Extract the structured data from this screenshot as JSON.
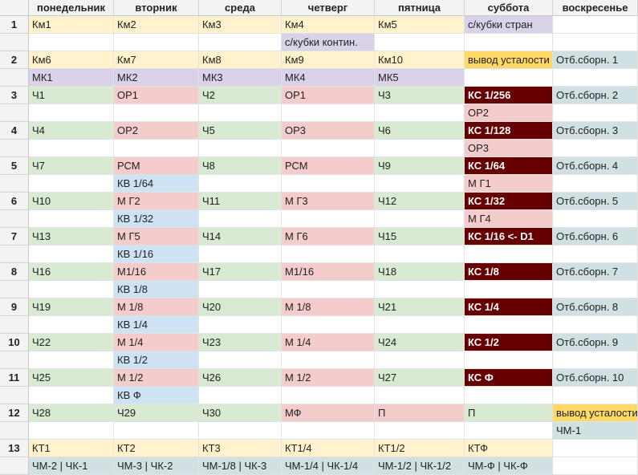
{
  "headers": [
    "",
    "понедельник",
    "вторник",
    "среда",
    "четверг",
    "пятница",
    "суббота",
    "воскресенье"
  ],
  "colors": {
    "yellow": "#fff2cc",
    "purple": "#d9d2e9",
    "green": "#d9ead3",
    "pink": "#f4cccc",
    "blue": "#cfe2f3",
    "teal": "#d0e0e3",
    "orange": "#ffd966",
    "maroon": "#660000",
    "white": "#ffffff"
  },
  "rows": [
    {
      "label": "1",
      "cells": [
        [
          "Км1",
          "yellow"
        ],
        [
          "Км2",
          "yellow"
        ],
        [
          "Км3",
          "yellow"
        ],
        [
          "Км4",
          "yellow"
        ],
        [
          "Км5",
          "yellow"
        ],
        [
          "с/кубки стран",
          "purple"
        ],
        [
          "",
          "white"
        ]
      ]
    },
    {
      "label": "",
      "cells": [
        [
          "",
          "white"
        ],
        [
          "",
          "white"
        ],
        [
          "",
          "white"
        ],
        [
          "с/кубки контин.",
          "purple"
        ],
        [
          "",
          "white"
        ],
        [
          "",
          "white"
        ],
        [
          "",
          "white"
        ]
      ]
    },
    {
      "label": "2",
      "cells": [
        [
          "Км6",
          "yellow"
        ],
        [
          "Км7",
          "yellow"
        ],
        [
          "Км8",
          "yellow"
        ],
        [
          "Км9",
          "yellow"
        ],
        [
          "Км10",
          "yellow"
        ],
        [
          "вывод усталости",
          "orange"
        ],
        [
          "Отб.сборн. 1",
          "teal"
        ]
      ]
    },
    {
      "label": "",
      "cells": [
        [
          "МК1",
          "purple"
        ],
        [
          "МК2",
          "purple"
        ],
        [
          "МК3",
          "purple"
        ],
        [
          "МК4",
          "purple"
        ],
        [
          "МК5",
          "purple"
        ],
        [
          "",
          "white"
        ],
        [
          "",
          "white"
        ]
      ]
    },
    {
      "label": "3",
      "cells": [
        [
          "Ч1",
          "green"
        ],
        [
          "ОР1",
          "pink"
        ],
        [
          "Ч2",
          "green"
        ],
        [
          "ОР1",
          "pink"
        ],
        [
          "Ч3",
          "green"
        ],
        [
          "КС 1/256",
          "maroon"
        ],
        [
          "Отб.сборн. 2",
          "teal"
        ]
      ]
    },
    {
      "label": "",
      "cells": [
        [
          "",
          "white"
        ],
        [
          "",
          "white"
        ],
        [
          "",
          "white"
        ],
        [
          "",
          "white"
        ],
        [
          "",
          "white"
        ],
        [
          "ОР2",
          "pink"
        ],
        [
          "",
          "white"
        ]
      ]
    },
    {
      "label": "4",
      "cells": [
        [
          "Ч4",
          "green"
        ],
        [
          "ОР2",
          "pink"
        ],
        [
          "Ч5",
          "green"
        ],
        [
          "ОР3",
          "pink"
        ],
        [
          "Ч6",
          "green"
        ],
        [
          "КС 1/128",
          "maroon"
        ],
        [
          "Отб.сборн. 3",
          "teal"
        ]
      ]
    },
    {
      "label": "",
      "cells": [
        [
          "",
          "white"
        ],
        [
          "",
          "white"
        ],
        [
          "",
          "white"
        ],
        [
          "",
          "white"
        ],
        [
          "",
          "white"
        ],
        [
          "ОР3",
          "pink"
        ],
        [
          "",
          "white"
        ]
      ]
    },
    {
      "label": "5",
      "cells": [
        [
          "Ч7",
          "green"
        ],
        [
          "РСМ",
          "pink"
        ],
        [
          "Ч8",
          "green"
        ],
        [
          "РСМ",
          "pink"
        ],
        [
          "Ч9",
          "green"
        ],
        [
          "КС 1/64",
          "maroon"
        ],
        [
          "Отб.сборн. 4",
          "teal"
        ]
      ]
    },
    {
      "label": "",
      "cells": [
        [
          "",
          "white"
        ],
        [
          "КВ 1/64",
          "blue"
        ],
        [
          "",
          "white"
        ],
        [
          "",
          "white"
        ],
        [
          "",
          "white"
        ],
        [
          "М Г1",
          "pink"
        ],
        [
          "",
          "white"
        ]
      ]
    },
    {
      "label": "6",
      "cells": [
        [
          "Ч10",
          "green"
        ],
        [
          "М Г2",
          "pink"
        ],
        [
          "Ч11",
          "green"
        ],
        [
          "М Г3",
          "pink"
        ],
        [
          "Ч12",
          "green"
        ],
        [
          "КС 1/32",
          "maroon"
        ],
        [
          "Отб.сборн. 5",
          "teal"
        ]
      ]
    },
    {
      "label": "",
      "cells": [
        [
          "",
          "white"
        ],
        [
          "КВ 1/32",
          "blue"
        ],
        [
          "",
          "white"
        ],
        [
          "",
          "white"
        ],
        [
          "",
          "white"
        ],
        [
          "М Г4",
          "pink"
        ],
        [
          "",
          "white"
        ]
      ]
    },
    {
      "label": "7",
      "cells": [
        [
          "Ч13",
          "green"
        ],
        [
          "М Г5",
          "pink"
        ],
        [
          "Ч14",
          "green"
        ],
        [
          "М Г6",
          "pink"
        ],
        [
          "Ч15",
          "green"
        ],
        [
          "КС 1/16 <- D1",
          "maroon"
        ],
        [
          "Отб.сборн. 6",
          "teal"
        ]
      ]
    },
    {
      "label": "",
      "cells": [
        [
          "",
          "white"
        ],
        [
          "КВ 1/16",
          "blue"
        ],
        [
          "",
          "white"
        ],
        [
          "",
          "white"
        ],
        [
          "",
          "white"
        ],
        [
          "",
          "white"
        ],
        [
          "",
          "white"
        ]
      ]
    },
    {
      "label": "8",
      "cells": [
        [
          "Ч16",
          "green"
        ],
        [
          "М1/16",
          "pink"
        ],
        [
          "Ч17",
          "green"
        ],
        [
          "М1/16",
          "pink"
        ],
        [
          "Ч18",
          "green"
        ],
        [
          "КС 1/8",
          "maroon"
        ],
        [
          "Отб.сборн. 7",
          "teal"
        ]
      ]
    },
    {
      "label": "",
      "cells": [
        [
          "",
          "white"
        ],
        [
          "КВ 1/8",
          "blue"
        ],
        [
          "",
          "white"
        ],
        [
          "",
          "white"
        ],
        [
          "",
          "white"
        ],
        [
          "",
          "white"
        ],
        [
          "",
          "white"
        ]
      ]
    },
    {
      "label": "9",
      "cells": [
        [
          "Ч19",
          "green"
        ],
        [
          "М 1/8",
          "pink"
        ],
        [
          "Ч20",
          "green"
        ],
        [
          "М 1/8",
          "pink"
        ],
        [
          "Ч21",
          "green"
        ],
        [
          "КС 1/4",
          "maroon"
        ],
        [
          "Отб.сборн. 8",
          "teal"
        ]
      ]
    },
    {
      "label": "",
      "cells": [
        [
          "",
          "white"
        ],
        [
          "КВ 1/4",
          "blue"
        ],
        [
          "",
          "white"
        ],
        [
          "",
          "white"
        ],
        [
          "",
          "white"
        ],
        [
          "",
          "white"
        ],
        [
          "",
          "white"
        ]
      ]
    },
    {
      "label": "10",
      "cells": [
        [
          "Ч22",
          "green"
        ],
        [
          "М 1/4",
          "pink"
        ],
        [
          "Ч23",
          "green"
        ],
        [
          "М 1/4",
          "pink"
        ],
        [
          "Ч24",
          "green"
        ],
        [
          "КС 1/2",
          "maroon"
        ],
        [
          "Отб.сборн. 9",
          "teal"
        ]
      ]
    },
    {
      "label": "",
      "cells": [
        [
          "",
          "white"
        ],
        [
          "КВ 1/2",
          "blue"
        ],
        [
          "",
          "white"
        ],
        [
          "",
          "white"
        ],
        [
          "",
          "white"
        ],
        [
          "",
          "white"
        ],
        [
          "",
          "white"
        ]
      ]
    },
    {
      "label": "11",
      "cells": [
        [
          "Ч25",
          "green"
        ],
        [
          "М 1/2",
          "pink"
        ],
        [
          "Ч26",
          "green"
        ],
        [
          "М 1/2",
          "pink"
        ],
        [
          "Ч27",
          "green"
        ],
        [
          "КС Ф",
          "maroon"
        ],
        [
          "Отб.сборн. 10",
          "teal"
        ]
      ]
    },
    {
      "label": "",
      "cells": [
        [
          "",
          "white"
        ],
        [
          "КВ Ф",
          "blue"
        ],
        [
          "",
          "white"
        ],
        [
          "",
          "white"
        ],
        [
          "",
          "white"
        ],
        [
          "",
          "white"
        ],
        [
          "",
          "white"
        ]
      ]
    },
    {
      "label": "12",
      "cells": [
        [
          "Ч28",
          "green"
        ],
        [
          "Ч29",
          "green"
        ],
        [
          "Ч30",
          "green"
        ],
        [
          "МФ",
          "pink"
        ],
        [
          "П",
          "pink"
        ],
        [
          "П",
          "green"
        ],
        [
          "вывод усталости",
          "orange"
        ]
      ]
    },
    {
      "label": "",
      "cells": [
        [
          "",
          "white"
        ],
        [
          "",
          "white"
        ],
        [
          "",
          "white"
        ],
        [
          "",
          "white"
        ],
        [
          "",
          "white"
        ],
        [
          "",
          "white"
        ],
        [
          "ЧМ-1",
          "teal"
        ]
      ]
    },
    {
      "label": "13",
      "cells": [
        [
          "КТ1",
          "yellow"
        ],
        [
          "КТ2",
          "yellow"
        ],
        [
          "КТ3",
          "yellow"
        ],
        [
          "КТ1/4",
          "yellow"
        ],
        [
          "КТ1/2",
          "yellow"
        ],
        [
          "КТФ",
          "yellow"
        ],
        [
          "",
          "white"
        ]
      ]
    },
    {
      "label": "",
      "cells": [
        [
          "ЧМ-2 | ЧК-1",
          "teal"
        ],
        [
          "ЧМ-3 | ЧК-2",
          "teal"
        ],
        [
          "ЧМ-1/8 | ЧК-3",
          "teal"
        ],
        [
          "ЧМ-1/4 | ЧК-1/4",
          "teal"
        ],
        [
          "ЧМ-1/2 | ЧК-1/2",
          "teal"
        ],
        [
          "ЧМ-Ф | ЧК-Ф",
          "teal"
        ],
        [
          "",
          "white"
        ]
      ]
    }
  ]
}
